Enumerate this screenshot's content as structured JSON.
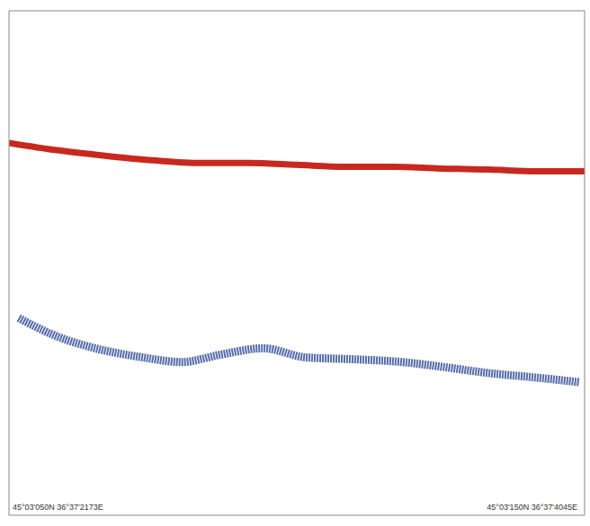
{
  "chart_data": {
    "type": "echogram",
    "annotations": [
      "45°03'050N 36°37'2173E",
      "45°03'150N 36°37'4045E"
    ],
    "xlim": [
      0,
      6
    ],
    "xticks": [
      1,
      2,
      3,
      4,
      5
    ],
    "ylim": [
      0,
      5.5
    ],
    "yticks": [
      1,
      2,
      3,
      4,
      5
    ],
    "tick_labels": false,
    "series": [
      {
        "color": "#c8281e",
        "x": [
          0,
          0.5,
          1,
          1.5,
          2,
          2.5,
          3,
          3.5,
          4,
          4.5,
          5,
          5.5,
          6
        ],
        "values": [
          1.44,
          1.52,
          1.58,
          1.63,
          1.66,
          1.66,
          1.68,
          1.7,
          1.7,
          1.72,
          1.73,
          1.75,
          1.75
        ]
      },
      {
        "color": "#1e3c8c",
        "x": [
          0.1,
          0.5,
          0.9,
          1.4,
          1.8,
          2.2,
          2.65,
          3.1,
          3.6,
          4.1,
          4.5,
          5,
          5.5,
          5.95
        ],
        "values": [
          3.35,
          3.55,
          3.68,
          3.78,
          3.83,
          3.75,
          3.68,
          3.78,
          3.8,
          3.83,
          3.88,
          3.95,
          4.0,
          4.05
        ]
      }
    ]
  }
}
